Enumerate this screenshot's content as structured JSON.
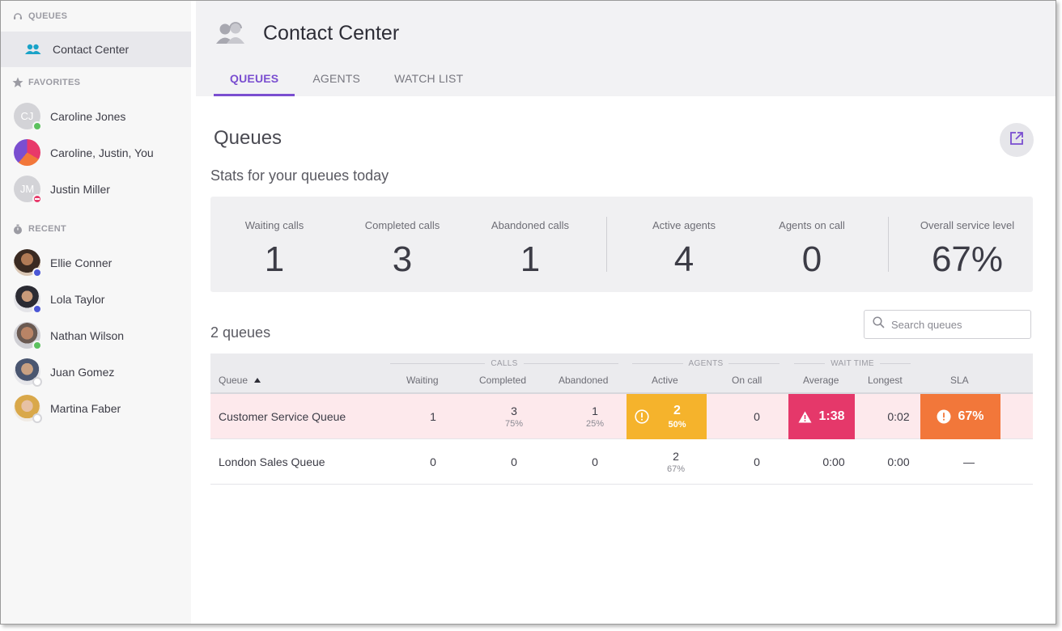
{
  "sidebar": {
    "queues_heading": "QUEUES",
    "active_item": "Contact Center",
    "favorites_heading": "FAVORITES",
    "favorites": [
      {
        "name": "Caroline Jones",
        "initials": "CJ",
        "status": "online"
      },
      {
        "name": "Caroline, Justin, You",
        "initials": "",
        "status": "none"
      },
      {
        "name": "Justin Miller",
        "initials": "JM",
        "status": "dnd"
      }
    ],
    "recent_heading": "RECENT",
    "recent": [
      {
        "name": "Ellie Conner",
        "status": "away"
      },
      {
        "name": "Lola Taylor",
        "status": "away"
      },
      {
        "name": "Nathan Wilson",
        "status": "online"
      },
      {
        "name": "Juan Gomez",
        "status": "offline"
      },
      {
        "name": "Martina Faber",
        "status": "offline"
      }
    ]
  },
  "header": {
    "title": "Contact Center",
    "tabs": [
      "QUEUES",
      "AGENTS",
      "WATCH LIST"
    ],
    "active_tab": "QUEUES"
  },
  "page": {
    "title": "Queues",
    "subtitle": "Stats for your queues today",
    "queue_count": "2 queues",
    "search_placeholder": "Search queues"
  },
  "stats": [
    {
      "label": "Waiting calls",
      "value": "1"
    },
    {
      "label": "Completed calls",
      "value": "3"
    },
    {
      "label": "Abandoned calls",
      "value": "1"
    },
    {
      "label": "Active agents",
      "value": "4"
    },
    {
      "label": "Agents on call",
      "value": "0"
    },
    {
      "label": "Overall service level",
      "value": "67%"
    }
  ],
  "table": {
    "groups": {
      "calls": "CALLS",
      "agents": "AGENTS",
      "wait_time": "WAIT TIME"
    },
    "columns": {
      "queue": "Queue",
      "waiting": "Waiting",
      "completed": "Completed",
      "abandoned": "Abandoned",
      "active": "Active",
      "on_call": "On call",
      "average": "Average",
      "longest": "Longest",
      "sla": "SLA"
    },
    "rows": [
      {
        "name": "Customer Service Queue",
        "waiting": "1",
        "completed": "3",
        "completed_pct": "75%",
        "abandoned": "1",
        "abandoned_pct": "25%",
        "active": "2",
        "active_pct": "50%",
        "on_call": "0",
        "average": "1:38",
        "longest": "0:02",
        "sla": "67%"
      },
      {
        "name": "London Sales Queue",
        "waiting": "0",
        "completed": "0",
        "abandoned": "0",
        "active": "2",
        "active_pct": "67%",
        "on_call": "0",
        "average": "0:00",
        "longest": "0:00",
        "sla": "—"
      }
    ]
  },
  "colors": {
    "accent": "#7a4ed0",
    "alert_row": "#fde9ec",
    "warning_yellow": "#f5b32c",
    "alert_red": "#e5386a",
    "alert_orange": "#f2773a"
  }
}
